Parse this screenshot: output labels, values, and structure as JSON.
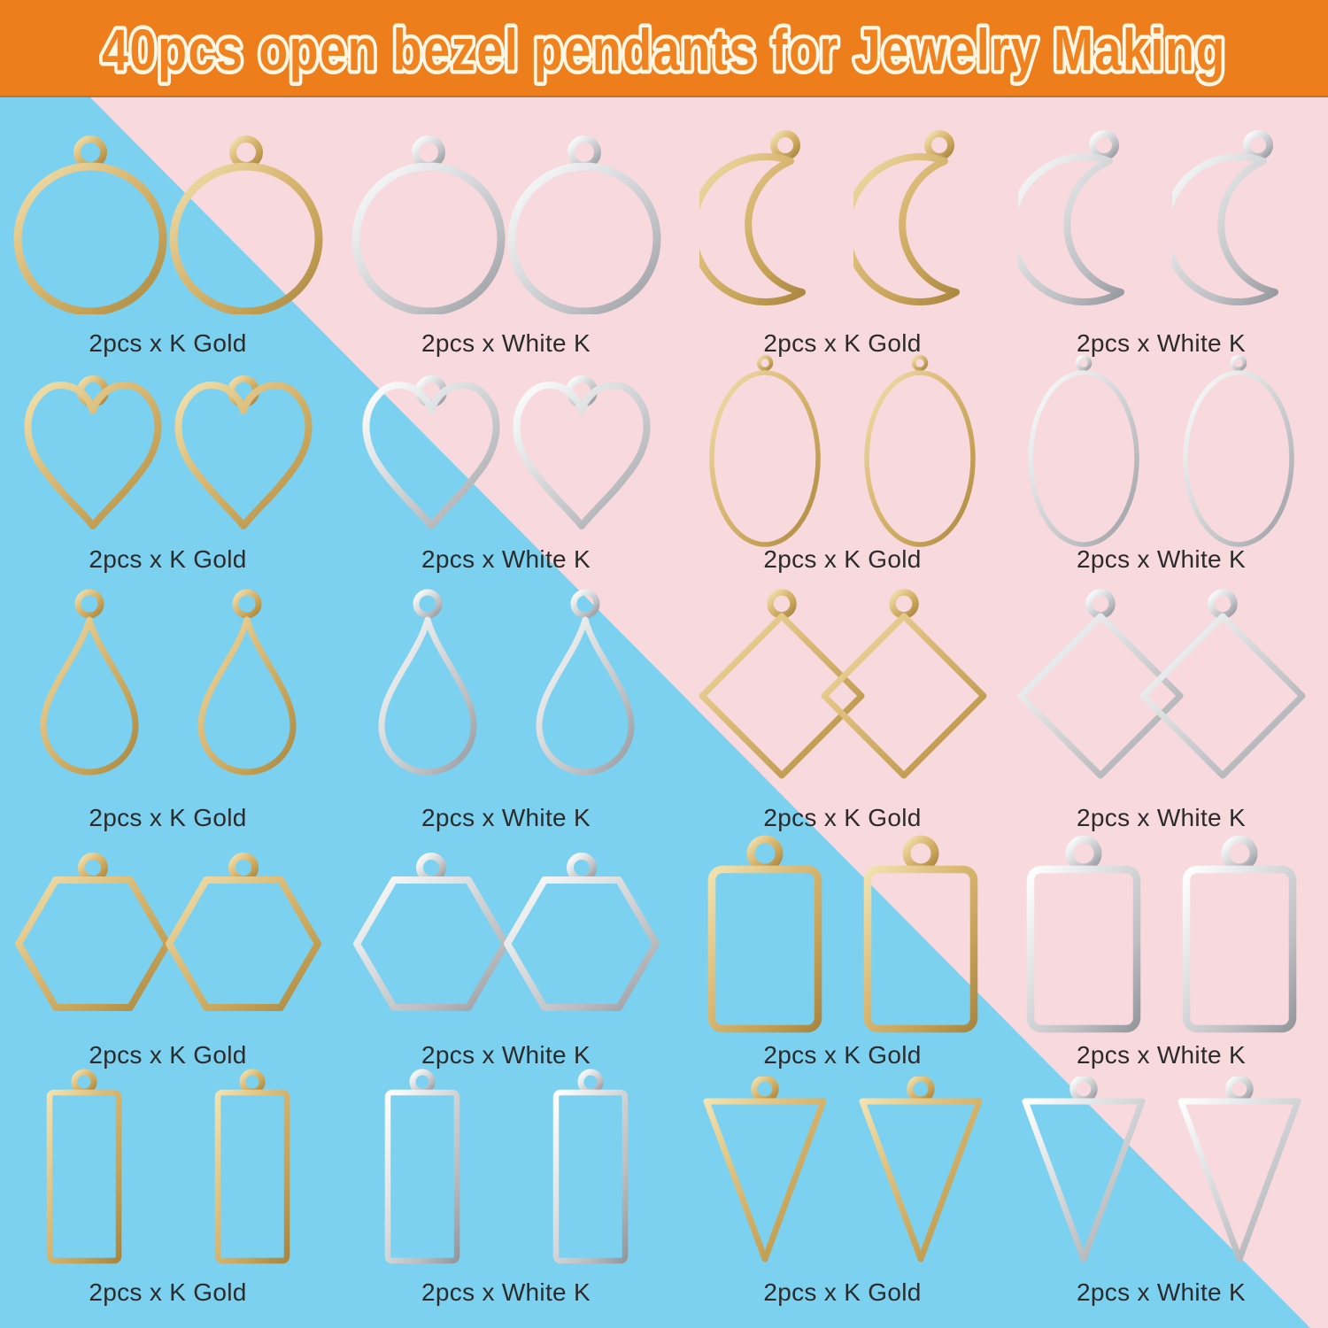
{
  "header": {
    "title": "40pcs open bezel pendants for Jewelry Making",
    "background": "#ee7d1c",
    "text_fill": "#f0821f",
    "text_outline": "#fff7e6"
  },
  "background": {
    "blue": "#7cd1f0",
    "pink": "#f8d9dd"
  },
  "palette": {
    "gold": [
      "#f2e2b0",
      "#dcbc79",
      "#c5a257",
      "#a9853f"
    ],
    "silver": [
      "#ffffff",
      "#dcdee0",
      "#bcbec2",
      "#94979c"
    ],
    "label_color": "#2b2b2b"
  },
  "labels": {
    "gold": "2pcs x K Gold",
    "silver": "2pcs x White K"
  },
  "grid": {
    "rows": [
      [
        {
          "shape": "circle",
          "metal": "gold",
          "label": "2pcs x K Gold"
        },
        {
          "shape": "circle",
          "metal": "silver",
          "label": "2pcs x White K"
        },
        {
          "shape": "moon",
          "metal": "gold",
          "label": "2pcs x K Gold"
        },
        {
          "shape": "moon",
          "metal": "silver",
          "label": "2pcs x White K"
        }
      ],
      [
        {
          "shape": "heart",
          "metal": "gold",
          "label": "2pcs x K Gold"
        },
        {
          "shape": "heart",
          "metal": "silver",
          "label": "2pcs x White K"
        },
        {
          "shape": "oval",
          "metal": "gold",
          "label": "2pcs x K Gold"
        },
        {
          "shape": "oval",
          "metal": "silver",
          "label": "2pcs x White K"
        }
      ],
      [
        {
          "shape": "teardrop",
          "metal": "gold",
          "label": "2pcs x K Gold"
        },
        {
          "shape": "teardrop",
          "metal": "silver",
          "label": "2pcs x White K"
        },
        {
          "shape": "diamond",
          "metal": "gold",
          "label": "2pcs x K Gold"
        },
        {
          "shape": "diamond",
          "metal": "silver",
          "label": "2pcs x White K"
        }
      ],
      [
        {
          "shape": "hexagon",
          "metal": "gold",
          "label": "2pcs x K Gold"
        },
        {
          "shape": "hexagon",
          "metal": "silver",
          "label": "2pcs x White K"
        },
        {
          "shape": "rect",
          "metal": "gold",
          "label": "2pcs x K Gold"
        },
        {
          "shape": "rect",
          "metal": "silver",
          "label": "2pcs x White K"
        }
      ],
      [
        {
          "shape": "tallrect",
          "metal": "gold",
          "label": "2pcs x K Gold"
        },
        {
          "shape": "tallrect",
          "metal": "silver",
          "label": "2pcs x White K"
        },
        {
          "shape": "triangle",
          "metal": "gold",
          "label": "2pcs x K Gold"
        },
        {
          "shape": "triangle",
          "metal": "silver",
          "label": "2pcs x White K"
        }
      ]
    ]
  }
}
